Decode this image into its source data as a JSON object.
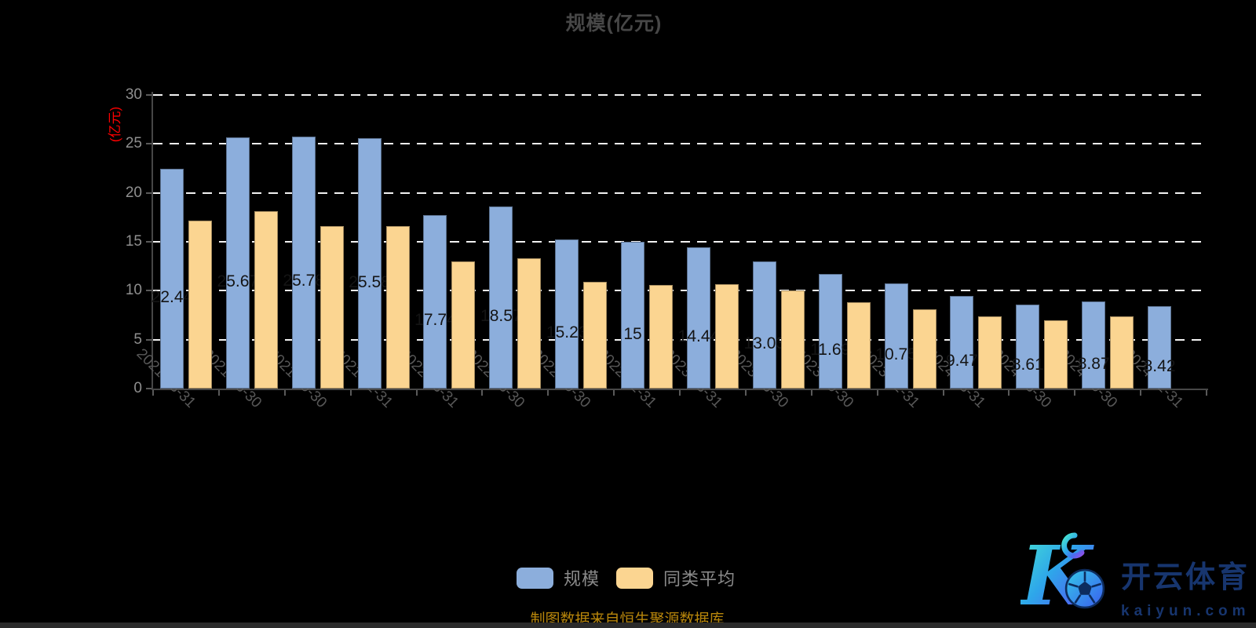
{
  "title": "规模(亿元)",
  "chart_data": {
    "type": "bar",
    "title": "规模(亿元)",
    "ylabel": "(亿元)",
    "ylim": [
      0,
      30
    ],
    "y_ticks": [
      0,
      5,
      10,
      15,
      20,
      25,
      30
    ],
    "grid": "horizontal-dashed-white",
    "legend_position": "bottom-center",
    "categories": [
      "2021-03-31",
      "2021-06-30",
      "2021-09-30",
      "2021-12-31",
      "2022-03-31",
      "2022-06-30",
      "2022-09-30",
      "2022-12-31",
      "2023-03-31",
      "2023-06-30",
      "2023-09-30",
      "2023-12-31",
      "2024-03-31",
      "2024-06-30",
      "2024-09-30",
      "2024-12-31"
    ],
    "series": [
      {
        "name": "规模",
        "color": "#8CAEDC",
        "values": [
          22.44,
          25.67,
          25.78,
          25.58,
          17.74,
          18.57,
          15.23,
          15,
          14.44,
          13.03,
          11.69,
          10.75,
          9.47,
          8.61,
          8.87,
          8.42
        ],
        "data_labels": [
          "22.44",
          "25.67",
          "25.78",
          "25.58",
          "17.74",
          "18.57",
          "15.23",
          "15",
          "14.44",
          "13.03",
          "11.69",
          "10.75",
          "9.47",
          "8.61",
          "8.87",
          "8.42"
        ]
      },
      {
        "name": "同类平均",
        "color": "#FBD591",
        "values": [
          17.2,
          18.1,
          16.6,
          16.6,
          13.0,
          13.3,
          10.9,
          10.6,
          10.7,
          10.0,
          8.8,
          8.1,
          7.4,
          7.0,
          7.4,
          null
        ],
        "data_labels": []
      }
    ]
  },
  "legend": {
    "items": [
      {
        "label": "规模",
        "color": "#8CAEDC"
      },
      {
        "label": "同类平均",
        "color": "#FBD591"
      }
    ]
  },
  "footer": {
    "source_note": "制图数据来自恒生聚源数据库"
  },
  "watermark": {
    "monogram": "K",
    "brand_cn": "开云体育",
    "brand_url": "kaiyun.com"
  },
  "colors": {
    "background": "#000000",
    "title_text": "#474747",
    "y_axis_name": "#ff0000",
    "axis_line": "#474747",
    "y_tick_label": "#8f8f8f",
    "x_tick_label": "#575757",
    "gridline": "#f2f2f2",
    "bar_value_label": "#141414",
    "legend_text": "#8b8b8b",
    "footer_text": "#b8860b",
    "watermark_navy": "#17356e"
  }
}
